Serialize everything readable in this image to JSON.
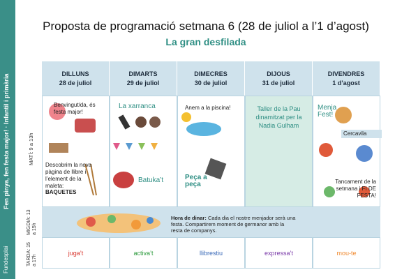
{
  "header": {
    "title": "Proposta de programació setmana 6 (28 de juliol a l’1 d’agost)",
    "subtitle": "La gran desfilada"
  },
  "sidebar": {
    "text": "Fen pinya, fen festa major! · Infantil i primària",
    "logo": "Fundesplai"
  },
  "table": {
    "columns": [
      {
        "day": "DILLUNS",
        "date": "28 de juliol"
      },
      {
        "day": "DIMARTS",
        "date": "29 de juliol"
      },
      {
        "day": "DIMECRES",
        "date": "30 de juliol"
      },
      {
        "day": "DIJOUS",
        "date": "31 de juliol"
      },
      {
        "day": "DIVENDRES",
        "date": "1 d’agost"
      }
    ],
    "rows": [
      "MATÍ: 9 a 13h",
      "MIGDIA: 13 a 15h",
      "TARDA: 15 a 17h"
    ],
    "morning": [
      [
        "Benvingut/da, és festa major!",
        "Descobrim la nova pàgina de llibre i l’element de la maleta:",
        "BAQUETES"
      ],
      [
        "La xarranca",
        "Batuka’t"
      ],
      [
        "Anem a la piscina!",
        "Peça a peça"
      ],
      [
        "Taller de la Pau dinamitzat per la Nadia Gulham"
      ],
      [
        "Menja Fest!",
        "Cercavila",
        "Tancament de la setmana i FI DE FESTA!"
      ]
    ],
    "lunch": {
      "bold": "Hora de dinar:",
      "text": "Cada dia el nostre menjador serà una festa. Compartirem moment de germanor amb la resta de companys."
    },
    "afternoon": [
      {
        "text": "juga’t",
        "color": "#d8342c"
      },
      {
        "text": "activa’t",
        "color": "#2c9a3c"
      },
      {
        "text": "llibrestiu",
        "color": "#3a6ab8"
      },
      {
        "text": "expressa’t",
        "color": "#7a3aa8"
      },
      {
        "text": "mou-te",
        "color": "#f08a30"
      }
    ]
  }
}
